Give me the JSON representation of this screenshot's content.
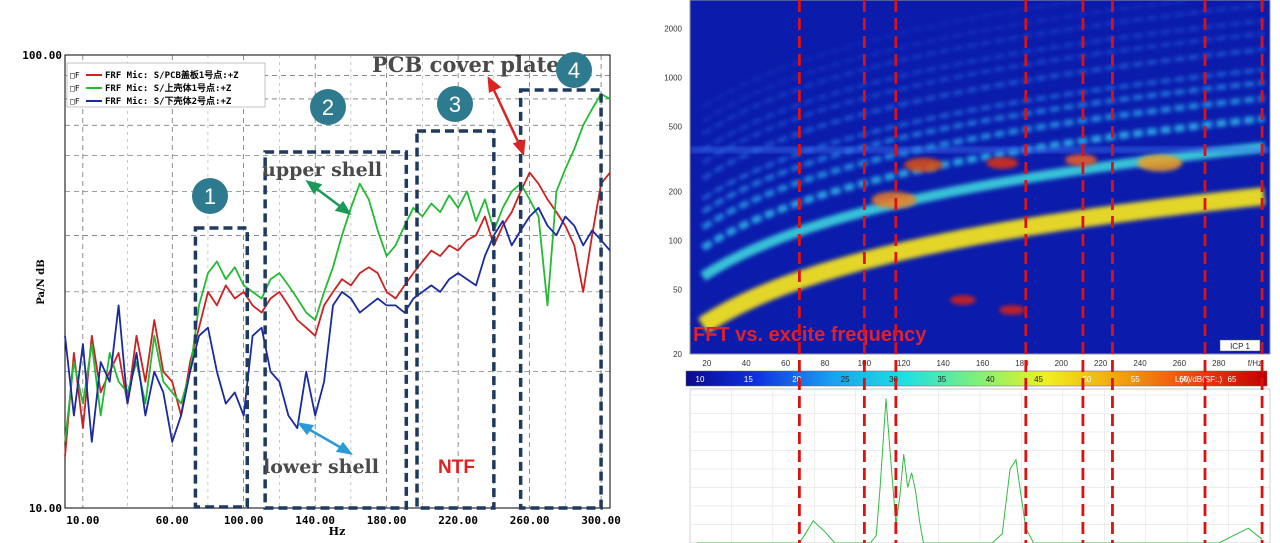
{
  "chart_data": [
    {
      "type": "line",
      "xlabel": "Hz",
      "ylabel": "Pa/N dB",
      "xlim": [
        0,
        305
      ],
      "ylim": [
        10,
        100
      ],
      "yscale": "log",
      "xticks": [
        "10.00",
        "60.00",
        "100.00",
        "140.00",
        "180.00",
        "220.00",
        "260.00",
        "300.00"
      ],
      "yticks": [
        "100.00",
        "10.00"
      ],
      "legend_position": "top-left",
      "legend": [
        "FRF Mic: S/PCB盖板1号点:+Z",
        "FRF Mic: S/上壳体1号点:+Z",
        "FRF Mic: S/下壳体2号点:+Z"
      ],
      "series": [
        {
          "name": "FRF Mic: S/PCB盖板1号点:+Z",
          "color": "#cc2222",
          "x": [
            0,
            5,
            10,
            15,
            20,
            25,
            30,
            35,
            40,
            45,
            50,
            55,
            60,
            65,
            70,
            75,
            80,
            85,
            90,
            95,
            100,
            105,
            110,
            115,
            120,
            125,
            130,
            135,
            140,
            145,
            150,
            155,
            160,
            165,
            170,
            175,
            180,
            185,
            190,
            195,
            200,
            205,
            210,
            215,
            220,
            225,
            230,
            235,
            240,
            245,
            250,
            255,
            260,
            265,
            270,
            275,
            280,
            285,
            290,
            295,
            300,
            305
          ],
          "y": [
            13,
            22,
            15,
            24,
            18,
            20,
            22,
            17,
            24,
            19,
            26,
            20,
            19,
            16,
            21,
            25,
            30,
            28,
            31,
            29,
            30,
            28,
            27,
            29,
            30,
            28,
            26,
            25,
            24,
            28,
            30,
            32,
            31,
            33,
            34,
            33,
            30,
            29,
            31,
            33,
            35,
            37,
            36,
            38,
            37,
            39,
            40,
            44,
            38,
            42,
            45,
            50,
            55,
            52,
            48,
            45,
            42,
            38,
            30,
            40,
            52,
            55
          ]
        },
        {
          "name": "FRF Mic: S/上壳体1号点:+Z",
          "color": "#22bb33",
          "x": [
            0,
            5,
            10,
            15,
            20,
            25,
            30,
            35,
            40,
            45,
            50,
            55,
            60,
            65,
            70,
            75,
            80,
            85,
            90,
            95,
            100,
            105,
            110,
            115,
            120,
            125,
            130,
            135,
            140,
            145,
            150,
            155,
            160,
            165,
            170,
            175,
            180,
            185,
            190,
            195,
            200,
            205,
            210,
            215,
            220,
            225,
            230,
            235,
            240,
            245,
            250,
            255,
            260,
            265,
            270,
            275,
            280,
            285,
            290,
            295,
            300,
            305
          ],
          "y": [
            14,
            21,
            17,
            23,
            16,
            22,
            19,
            18,
            21,
            17,
            24,
            19,
            18,
            17,
            20,
            28,
            33,
            35,
            32,
            34,
            31,
            30,
            29,
            32,
            33,
            31,
            29,
            27,
            26,
            30,
            34,
            40,
            46,
            52,
            48,
            41,
            36,
            38,
            42,
            46,
            44,
            47,
            45,
            49,
            46,
            50,
            43,
            48,
            41,
            46,
            50,
            52,
            48,
            44,
            28,
            50,
            56,
            62,
            70,
            76,
            82,
            80
          ]
        },
        {
          "name": "FRF Mic: S/下壳体2号点:+Z",
          "color": "#1a2aa0",
          "x": [
            0,
            5,
            10,
            15,
            20,
            25,
            30,
            35,
            40,
            45,
            50,
            55,
            60,
            65,
            70,
            75,
            80,
            85,
            90,
            95,
            100,
            105,
            110,
            115,
            120,
            125,
            130,
            135,
            140,
            145,
            150,
            155,
            160,
            165,
            170,
            175,
            180,
            185,
            190,
            195,
            200,
            205,
            210,
            215,
            220,
            225,
            230,
            235,
            240,
            245,
            250,
            255,
            260,
            265,
            270,
            275,
            280,
            285,
            290,
            295,
            300,
            305
          ],
          "y": [
            24,
            16,
            23,
            14,
            21,
            19,
            28,
            17,
            22,
            16,
            20,
            18,
            14,
            16,
            20,
            24,
            25,
            20,
            17,
            18,
            16,
            24,
            25,
            20,
            19,
            16,
            15,
            20,
            16,
            19,
            28,
            30,
            29,
            27,
            28,
            29,
            28,
            28,
            27,
            29,
            30,
            31,
            30,
            32,
            33,
            32,
            31,
            36,
            40,
            43,
            38,
            41,
            44,
            46,
            42,
            40,
            44,
            42,
            38,
            41,
            39,
            37
          ]
        }
      ],
      "regions": [
        {
          "id": "1",
          "x_range": [
            73,
            102
          ]
        },
        {
          "id": "2",
          "x_range": [
            112,
            191
          ]
        },
        {
          "id": "3",
          "x_range": [
            197,
            240
          ]
        },
        {
          "id": "4",
          "x_range": [
            255,
            300
          ]
        }
      ],
      "annotations": {
        "upper_shell": "upper shell",
        "lower_shell": "lower shell",
        "pcb_cover": "PCB cover plate",
        "ntf": "NTF"
      }
    },
    {
      "type": "heatmap",
      "title": "FFT vs. excite frequency",
      "xlabel": "f/Hz",
      "xlim": [
        15,
        305
      ],
      "xticks": [
        "20",
        "40",
        "60",
        "80",
        "100",
        "120",
        "140",
        "160",
        "180",
        "200",
        "220",
        "240",
        "260",
        "280"
      ],
      "yscale": "log",
      "ylim": [
        20,
        3000
      ],
      "yticks": [
        "20",
        "50",
        "100",
        "200",
        "500",
        "1000",
        "2000"
      ],
      "colorbar_label": "L(A)/dB(SF:.)",
      "colorbar_ticks": [
        "10",
        "15",
        "20",
        "25",
        "30",
        "35",
        "40",
        "45",
        "50",
        "55",
        "60",
        "65"
      ],
      "channel_label": "ICP 1",
      "grid_lines_x": [
        67,
        100,
        116,
        182,
        211,
        226,
        273,
        302
      ]
    },
    {
      "type": "line",
      "series": [
        {
          "color": "#33bb44",
          "x": [
            15,
            40,
            55,
            67,
            70,
            74,
            77,
            80,
            85,
            95,
            103,
            106,
            108,
            111,
            113,
            116,
            118,
            120,
            122,
            124,
            126,
            128,
            130,
            135,
            140,
            155,
            165,
            170,
            174,
            177,
            179,
            182,
            186,
            195,
            215,
            240,
            280,
            295,
            302
          ],
          "y": [
            0,
            0,
            0,
            0,
            5,
            12,
            9,
            6,
            0,
            0,
            0,
            4,
            30,
            78,
            50,
            10,
            25,
            48,
            30,
            38,
            28,
            12,
            0,
            0,
            0,
            0,
            0,
            5,
            40,
            45,
            30,
            8,
            0,
            0,
            0,
            0,
            0,
            8,
            2
          ]
        }
      ]
    }
  ]
}
